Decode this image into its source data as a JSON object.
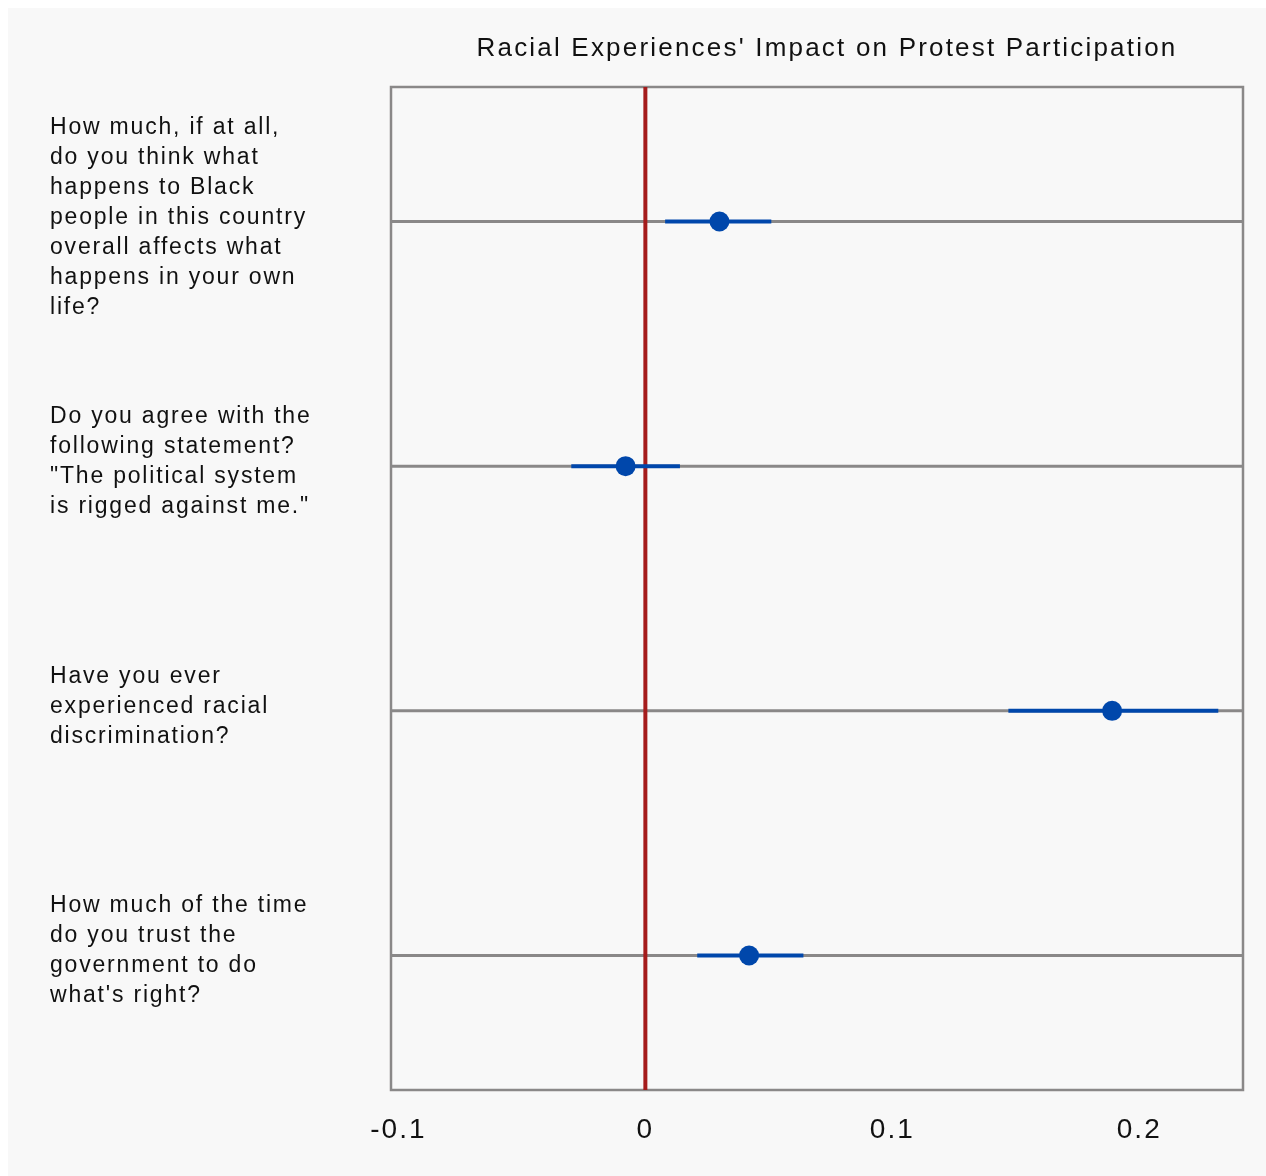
{
  "chart_data": {
    "type": "scatter",
    "title": "Racial Experiences' Impact on Protest Participation",
    "orientation": "horizontal",
    "categories": [
      "How much, if at all, do you think what happens to Black people in this country overall affects what happens in your own life?",
      "Do you agree with the following statement? \"The political system is rigged against me.\"",
      "Have you ever experienced racial discrimination?",
      "How much of the time do you trust the government to do what's right?"
    ],
    "series": [
      {
        "color": "#0047ab",
        "values": [
          0.03,
          -0.008,
          0.189,
          0.042
        ],
        "errors": [
          [
            0.008,
            0.051
          ],
          [
            -0.03,
            0.014
          ],
          [
            0.147,
            0.232
          ],
          [
            0.021,
            0.064
          ]
        ]
      }
    ],
    "xlim": [
      -0.103,
      0.242
    ],
    "xticks": [
      -0.1,
      0,
      0.1,
      0.2
    ],
    "grid": "y",
    "marker": "circle",
    "ref_lines": [
      {
        "axis": "x",
        "value": 0,
        "color": "#a51c1c"
      }
    ]
  }
}
